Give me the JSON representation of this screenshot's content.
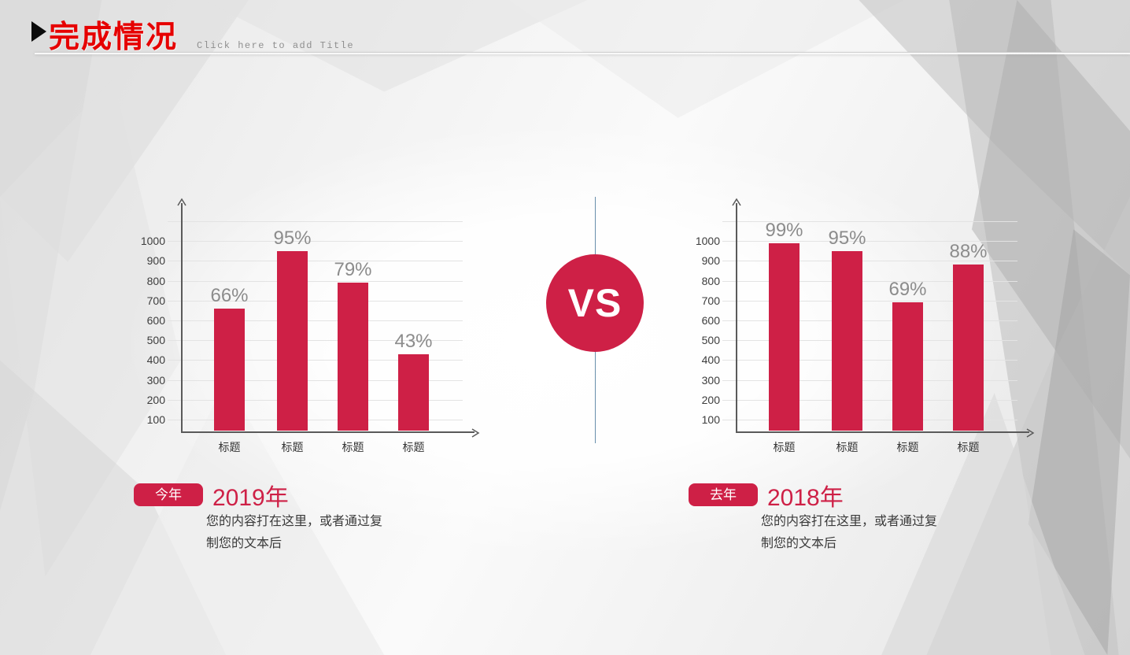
{
  "slide": {
    "title": "完成情况",
    "subtitle": "Click here to add Title"
  },
  "vs": {
    "label": "VS"
  },
  "colors": {
    "crimson": "#CE2046",
    "title_red": "#E60000",
    "divider_blue": "#4D7B9C",
    "bar_value_gray": "#8C8C8C"
  },
  "chart_data": [
    {
      "type": "bar",
      "side": "left",
      "badge": "今年",
      "year_title": "2019年",
      "description": "您的内容打在这里，或者通过复制您的文本后",
      "categories": [
        "标题",
        "标题",
        "标题",
        "标题"
      ],
      "values": [
        66,
        95,
        79,
        43
      ],
      "value_labels": [
        "66%",
        "95%",
        "79%",
        "43%"
      ],
      "value_unit": "percent plotted on 0-1000 axis (×10)",
      "yticks": [
        100,
        200,
        300,
        400,
        500,
        600,
        700,
        800,
        900,
        1000
      ],
      "ylim": [
        0,
        1100
      ],
      "grid": true,
      "legend": "none",
      "xlabel": "",
      "ylabel": ""
    },
    {
      "type": "bar",
      "side": "right",
      "badge": "去年",
      "year_title": "2018年",
      "description": "您的内容打在这里，或者通过复制您的文本后",
      "categories": [
        "标题",
        "标题",
        "标题",
        "标题"
      ],
      "values": [
        99,
        95,
        69,
        88
      ],
      "value_labels": [
        "99%",
        "95%",
        "69%",
        "88%"
      ],
      "value_unit": "percent plotted on 0-1000 axis (×10)",
      "yticks": [
        100,
        200,
        300,
        400,
        500,
        600,
        700,
        800,
        900,
        1000
      ],
      "ylim": [
        0,
        1100
      ],
      "grid": true,
      "legend": "none",
      "xlabel": "",
      "ylabel": ""
    }
  ]
}
